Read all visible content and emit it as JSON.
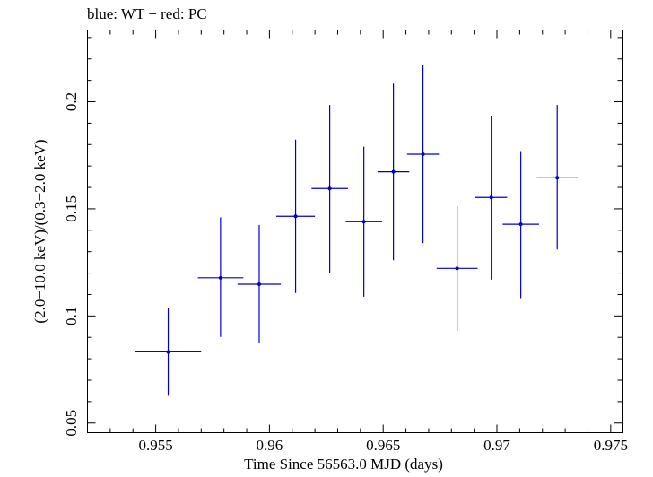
{
  "chart_data": {
    "type": "scatter",
    "title": "blue: WT − red: PC",
    "xlabel": "Time Since 56563.0 MJD (days)",
    "ylabel": "(2.0−10.0 keV)/(0.3−2.0 keV)",
    "xlim": [
      0.952,
      0.9755
    ],
    "ylim": [
      0.0455,
      0.2335
    ],
    "x_ticks": [
      0.955,
      0.96,
      0.965,
      0.97,
      0.975
    ],
    "x_tick_labels": [
      "0.955",
      "0.96",
      "0.965",
      "0.97",
      "0.975"
    ],
    "y_ticks": [
      0.05,
      0.1,
      0.15,
      0.2
    ],
    "y_tick_labels": [
      "0.05",
      "0.1",
      "0.15",
      "0.2"
    ],
    "grid": false,
    "series": [
      {
        "name": "WT",
        "color": "#0000cc",
        "points": [
          {
            "x": 0.95555,
            "y": 0.0832,
            "xerr": 0.00145,
            "ylo": 0.0627,
            "yhi": 0.1035
          },
          {
            "x": 0.95785,
            "y": 0.1178,
            "xerr": 0.001,
            "ylo": 0.0902,
            "yhi": 0.146
          },
          {
            "x": 0.95955,
            "y": 0.1148,
            "xerr": 0.00095,
            "ylo": 0.0873,
            "yhi": 0.1425
          },
          {
            "x": 0.96115,
            "y": 0.1465,
            "xerr": 0.00085,
            "ylo": 0.1107,
            "yhi": 0.1823
          },
          {
            "x": 0.96265,
            "y": 0.1595,
            "xerr": 0.0008,
            "ylo": 0.1202,
            "yhi": 0.1985
          },
          {
            "x": 0.96415,
            "y": 0.144,
            "xerr": 0.0008,
            "ylo": 0.109,
            "yhi": 0.179
          },
          {
            "x": 0.96545,
            "y": 0.1673,
            "xerr": 0.0007,
            "ylo": 0.126,
            "yhi": 0.2085
          },
          {
            "x": 0.96675,
            "y": 0.1755,
            "xerr": 0.0007,
            "ylo": 0.134,
            "yhi": 0.217
          },
          {
            "x": 0.96825,
            "y": 0.1222,
            "xerr": 0.0009,
            "ylo": 0.093,
            "yhi": 0.1512
          },
          {
            "x": 0.96975,
            "y": 0.1553,
            "xerr": 0.0007,
            "ylo": 0.117,
            "yhi": 0.1935
          },
          {
            "x": 0.97105,
            "y": 0.1428,
            "xerr": 0.0008,
            "ylo": 0.1083,
            "yhi": 0.177
          },
          {
            "x": 0.97265,
            "y": 0.1645,
            "xerr": 0.0009,
            "ylo": 0.131,
            "yhi": 0.1985
          }
        ]
      }
    ]
  }
}
